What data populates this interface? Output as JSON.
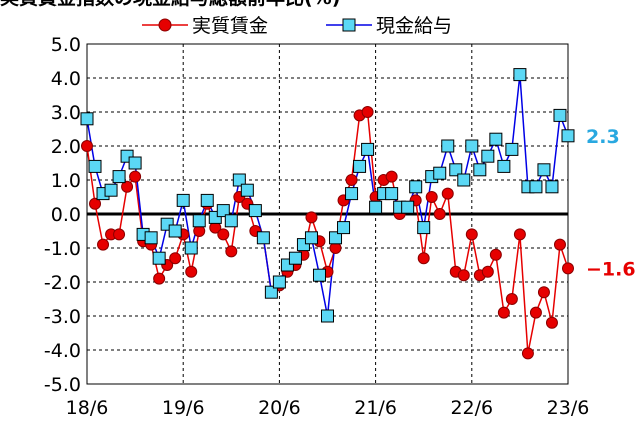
{
  "chart_data": {
    "type": "line",
    "title": "実質賃金指数の現金給与総額前年比(%)",
    "ylim": [
      -5.0,
      5.0
    ],
    "y_ticks": [
      "5.0",
      "4.0",
      "3.0",
      "2.0",
      "1.0",
      "0.0",
      "-1.0",
      "-2.0",
      "-3.0",
      "-4.0",
      "-5.0"
    ],
    "x_ticks": [
      "18/6",
      "19/6",
      "20/6",
      "21/6",
      "22/6",
      "23/6"
    ],
    "grid": "dashed",
    "legend_position": "top",
    "series": [
      {
        "name": "実質賃金",
        "color": "#e60000",
        "marker": "circle",
        "end_label": "−1.6",
        "values": [
          2.0,
          0.3,
          -0.9,
          -0.6,
          -0.6,
          0.8,
          1.1,
          -0.8,
          -0.9,
          -1.9,
          -1.5,
          -1.3,
          -0.6,
          -1.7,
          -0.5,
          0.3,
          -0.4,
          -0.6,
          -1.1,
          0.5,
          0.3,
          -0.5,
          -0.7,
          -2.3,
          -2.1,
          -1.7,
          -1.5,
          -1.2,
          -0.1,
          -0.8,
          -1.7,
          -1.0,
          0.4,
          1.0,
          2.9,
          3.0,
          0.5,
          1.0,
          1.1,
          0.0,
          0.2,
          0.4,
          -1.3,
          0.5,
          0.0,
          0.6,
          -1.7,
          -1.8,
          -0.6,
          -1.8,
          -1.7,
          -1.2,
          -2.9,
          -2.5,
          -0.6,
          -4.1,
          -2.9,
          -2.3,
          -3.2,
          -0.9,
          -1.6
        ]
      },
      {
        "name": "現金給与",
        "color": "#0000e6",
        "marker": "square",
        "marker_fill": "#5bd8f5",
        "end_label": "2.3",
        "end_label_color": "#29a8e0",
        "values": [
          2.8,
          1.4,
          0.6,
          0.7,
          1.1,
          1.7,
          1.5,
          -0.6,
          -0.7,
          -1.3,
          -0.3,
          -0.5,
          0.4,
          -1.0,
          -0.2,
          0.4,
          -0.1,
          0.1,
          -0.2,
          1.0,
          0.7,
          0.1,
          -0.7,
          -2.3,
          -2.0,
          -1.5,
          -1.3,
          -0.9,
          -0.7,
          -1.8,
          -3.0,
          -0.7,
          -0.4,
          0.6,
          1.4,
          1.9,
          0.2,
          0.6,
          0.6,
          0.2,
          0.2,
          0.8,
          -0.4,
          1.1,
          1.2,
          2.0,
          1.3,
          1.0,
          2.0,
          1.3,
          1.7,
          2.2,
          1.4,
          1.9,
          4.1,
          0.8,
          0.8,
          1.3,
          0.8,
          2.9,
          2.3
        ]
      }
    ]
  }
}
